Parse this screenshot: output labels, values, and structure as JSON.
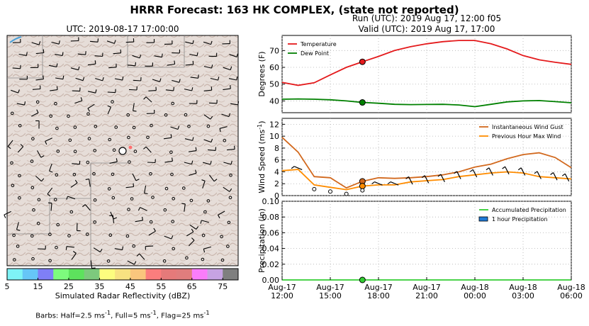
{
  "main_title": "HRRR Forecast: 163 HK COMPLEX, (state not reported)",
  "map": {
    "title": "UTC: 2019-08-17 17:00:00",
    "colorbar_label": "Simulated Radar Reflectivity (dBZ)",
    "colorbar_ticks": [
      "5",
      "15",
      "25",
      "35",
      "45",
      "55",
      "65",
      "75"
    ],
    "colorbar_colors": [
      "#7ef3f6",
      "#66c6f7",
      "#7f7ff6",
      "#7dfb7d",
      "#5de25d",
      "#7dc97d",
      "#fdfd7f",
      "#f8e281",
      "#fac67d",
      "#fb7d7d",
      "#e57a7a",
      "#e07d7d",
      "#fa7dfa",
      "#c7a3e3",
      "#7f7f7f"
    ],
    "barbs_note": "Barbs: Half=2.5 ms",
    "barbs_unit_exp": "-1",
    "barbs_note_2": ", Full=5 ms",
    "barbs_note_3": ", Flag=25 ms"
  },
  "run": {
    "line1": "Run (UTC): 2019 Aug 17, 12:00 f05",
    "line2": "Valid (UTC): 2019 Aug 17, 17:00"
  },
  "x_ticks": [
    {
      "hour": 0,
      "l1": "Aug-17",
      "l2": "12:00"
    },
    {
      "hour": 3,
      "l1": "Aug-17",
      "l2": "15:00"
    },
    {
      "hour": 6,
      "l1": "Aug-17",
      "l2": "18:00"
    },
    {
      "hour": 9,
      "l1": "Aug-17",
      "l2": "21:00"
    },
    {
      "hour": 12,
      "l1": "Aug-18",
      "l2": "00:00"
    },
    {
      "hour": 15,
      "l1": "Aug-18",
      "l2": "03:00"
    },
    {
      "hour": 18,
      "l1": "Aug-18",
      "l2": "06:00"
    }
  ],
  "chart_data": [
    {
      "type": "line",
      "ylabel": "Degrees (F)",
      "xlim": [
        0,
        18
      ],
      "ylim": [
        33,
        79
      ],
      "yticks": [
        40,
        50,
        60,
        70
      ],
      "grid": true,
      "legend": "top-left",
      "current_hour": 5,
      "x": [
        0,
        1,
        2,
        3,
        4,
        5,
        6,
        7,
        8,
        9,
        10,
        11,
        12,
        13,
        14,
        15,
        16,
        17,
        18
      ],
      "series": [
        {
          "name": "Temperature",
          "color": "#e41a1c",
          "values": [
            51,
            49.3,
            50.8,
            55.5,
            60,
            63.3,
            66.5,
            70,
            72.3,
            74,
            75.3,
            76,
            76,
            74,
            71,
            67,
            64.5,
            63,
            61.8
          ]
        },
        {
          "name": "Dew Point",
          "color": "#008000",
          "values": [
            41,
            41.2,
            41,
            40.7,
            40,
            39.1,
            38.6,
            38,
            37.8,
            37.9,
            38,
            37.6,
            36.6,
            38,
            39.4,
            40,
            40.2,
            39.6,
            38.9
          ]
        }
      ]
    },
    {
      "type": "line",
      "ylabel": "Wind Speed (ms",
      "ylabel_exp": "-1",
      "xlim": [
        0,
        18
      ],
      "ylim": [
        0,
        13
      ],
      "yticks": [
        0,
        2,
        4,
        6,
        8,
        10,
        12
      ],
      "grid": true,
      "legend": "top-right",
      "current_hour": 5,
      "x": [
        0,
        1,
        2,
        3,
        4,
        5,
        6,
        7,
        8,
        9,
        10,
        11,
        12,
        13,
        14,
        15,
        16,
        17,
        18
      ],
      "series": [
        {
          "name": "Instantaneous Wind Gust",
          "color": "#d2691e",
          "values": [
            9.8,
            7.3,
            3.2,
            3,
            1.3,
            2.4,
            3,
            2.9,
            3,
            3.2,
            3.5,
            4,
            4.8,
            5.3,
            6.2,
            6.9,
            7.2,
            6.4,
            4.7
          ]
        },
        {
          "name": "Previous Hour Max Wind",
          "color": "#ff8c00",
          "values": [
            4.2,
            4.4,
            1.8,
            1.4,
            1,
            1.6,
            1.8,
            1.8,
            2.3,
            2.5,
            2.7,
            3.2,
            3.5,
            3.8,
            4,
            3.8,
            3.2,
            3,
            2.8
          ]
        }
      ],
      "barb_calm_hours": [
        2,
        3,
        4,
        5
      ]
    },
    {
      "type": "bar",
      "ylabel": "Precipitation (in)",
      "xlim": [
        0,
        18
      ],
      "ylim": [
        0,
        0.1
      ],
      "yticks": [
        "0.00",
        "0.02",
        "0.04",
        "0.06",
        "0.08",
        "0.10"
      ],
      "grid": true,
      "legend": "top-right",
      "current_hour": 5,
      "x": [
        0,
        1,
        2,
        3,
        4,
        5,
        6,
        7,
        8,
        9,
        10,
        11,
        12,
        13,
        14,
        15,
        16,
        17,
        18
      ],
      "series": [
        {
          "name": "Accumulated Precipitation",
          "color": "#32cd32",
          "values": [
            0,
            0,
            0,
            0,
            0,
            0,
            0,
            0,
            0,
            0,
            0,
            0,
            0,
            0,
            0,
            0,
            0,
            0,
            0
          ]
        },
        {
          "name": "1 hour Precipitation",
          "color": "#1e7ad6",
          "values": [
            0,
            0,
            0,
            0,
            0,
            0,
            0,
            0,
            0,
            0,
            0,
            0,
            0,
            0,
            0,
            0,
            0,
            0,
            0
          ]
        }
      ]
    }
  ]
}
